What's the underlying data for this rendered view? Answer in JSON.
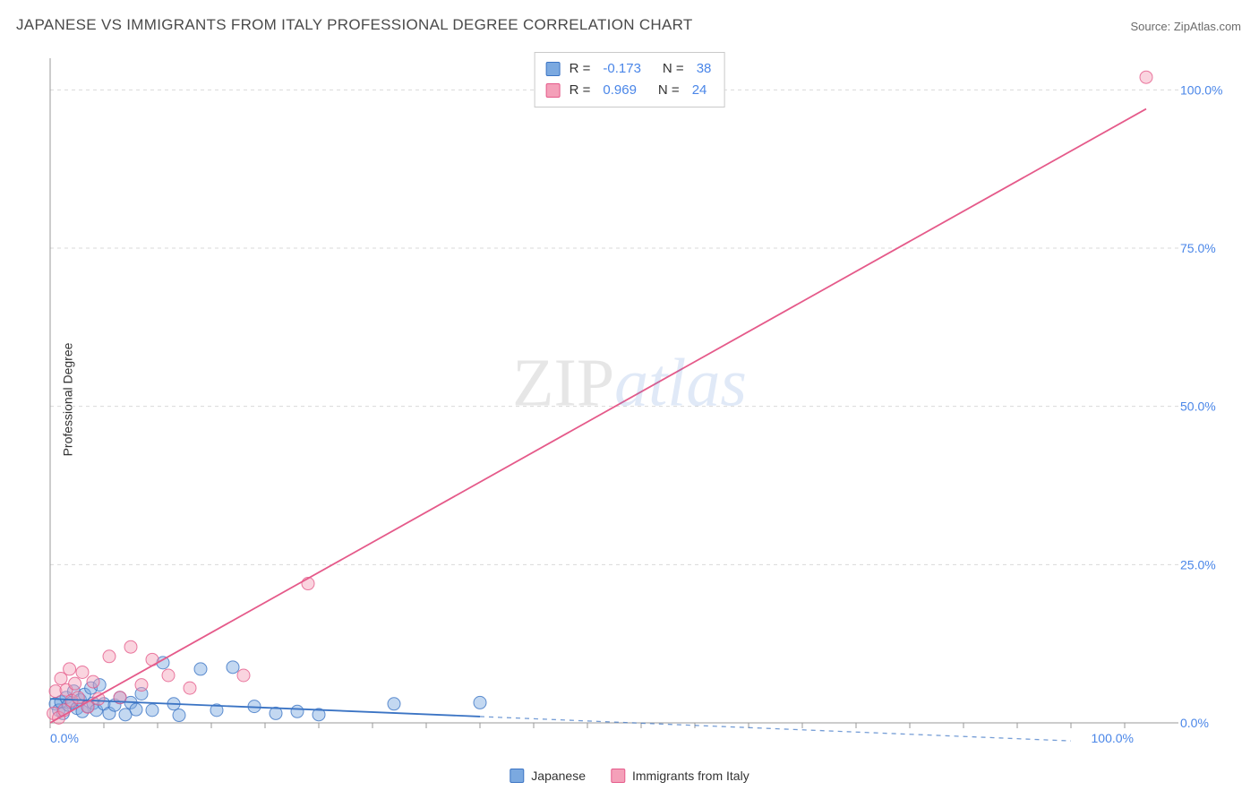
{
  "title": "JAPANESE VS IMMIGRANTS FROM ITALY PROFESSIONAL DEGREE CORRELATION CHART",
  "source_label": "Source: ZipAtlas.com",
  "y_axis_label": "Professional Degree",
  "watermark": {
    "part1": "ZIP",
    "part2": "atlas"
  },
  "chart": {
    "type": "scatter",
    "xlim": [
      0,
      105
    ],
    "ylim": [
      0,
      105
    ],
    "x_ticks_major": [
      0,
      25,
      50,
      75,
      100
    ],
    "y_ticks_major": [
      0,
      25,
      50,
      75,
      100
    ],
    "x_tick_labels": [
      "0.0%",
      "",
      "",
      "",
      "100.0%"
    ],
    "y_tick_labels": [
      "0.0%",
      "25.0%",
      "50.0%",
      "75.0%",
      "100.0%"
    ],
    "x_minor_step": 5,
    "grid_color": "#d9d9d9",
    "axis_color": "#999999",
    "tick_label_color": "#4a86e8",
    "tick_label_fontsize": 14,
    "background_color": "#ffffff",
    "marker_radius": 7,
    "marker_opacity": 0.45,
    "series": [
      {
        "name": "Japanese",
        "fill_color": "#7ba9e0",
        "stroke_color": "#3b74c4",
        "r_value": "-0.173",
        "n_value": "38",
        "regression": {
          "x1": 0,
          "y1": 3.8,
          "x2": 40,
          "y2": 1.0,
          "solid_until_x": 40,
          "dash_to_x": 95
        },
        "points": [
          [
            0.5,
            3
          ],
          [
            0.8,
            2
          ],
          [
            1,
            3.3
          ],
          [
            1.2,
            1.5
          ],
          [
            1.5,
            4
          ],
          [
            1.7,
            2.8
          ],
          [
            2,
            3.2
          ],
          [
            2.2,
            5
          ],
          [
            2.5,
            2.3
          ],
          [
            2.8,
            3.6
          ],
          [
            3,
            1.8
          ],
          [
            3.2,
            4.5
          ],
          [
            3.5,
            2.6
          ],
          [
            3.8,
            5.5
          ],
          [
            4,
            3.1
          ],
          [
            4.3,
            2
          ],
          [
            4.6,
            6
          ],
          [
            5,
            3
          ],
          [
            5.5,
            1.5
          ],
          [
            6,
            2.8
          ],
          [
            6.5,
            4
          ],
          [
            7,
            1.3
          ],
          [
            7.5,
            3.2
          ],
          [
            8,
            2.1
          ],
          [
            8.5,
            4.6
          ],
          [
            9.5,
            2
          ],
          [
            10.5,
            9.5
          ],
          [
            11.5,
            3
          ],
          [
            12,
            1.2
          ],
          [
            14,
            8.5
          ],
          [
            15.5,
            2
          ],
          [
            17,
            8.8
          ],
          [
            19,
            2.6
          ],
          [
            21,
            1.5
          ],
          [
            23,
            1.8
          ],
          [
            25,
            1.3
          ],
          [
            32,
            3
          ],
          [
            40,
            3.2
          ]
        ]
      },
      {
        "name": "Immigrants from Italy",
        "fill_color": "#f4a0b9",
        "stroke_color": "#e55a8a",
        "r_value": "0.969",
        "n_value": "24",
        "regression": {
          "x1": 0,
          "y1": 0,
          "x2": 102,
          "y2": 97,
          "solid_until_x": 102
        },
        "points": [
          [
            0.3,
            1.5
          ],
          [
            0.5,
            5
          ],
          [
            0.8,
            0.8
          ],
          [
            1,
            7
          ],
          [
            1.3,
            2
          ],
          [
            1.5,
            5.2
          ],
          [
            1.8,
            8.5
          ],
          [
            2,
            3.5
          ],
          [
            2.3,
            6.2
          ],
          [
            2.6,
            4
          ],
          [
            3,
            8
          ],
          [
            3.5,
            2.5
          ],
          [
            4,
            6.5
          ],
          [
            4.5,
            3.8
          ],
          [
            5.5,
            10.5
          ],
          [
            6.5,
            4
          ],
          [
            7.5,
            12
          ],
          [
            8.5,
            6
          ],
          [
            9.5,
            10
          ],
          [
            11,
            7.5
          ],
          [
            13,
            5.5
          ],
          [
            18,
            7.5
          ],
          [
            24,
            22
          ],
          [
            102,
            102
          ]
        ]
      }
    ]
  },
  "bottom_legend": [
    {
      "label": "Japanese",
      "fill": "#7ba9e0",
      "stroke": "#3b74c4"
    },
    {
      "label": "Immigrants from Italy",
      "fill": "#f4a0b9",
      "stroke": "#e55a8a"
    }
  ]
}
